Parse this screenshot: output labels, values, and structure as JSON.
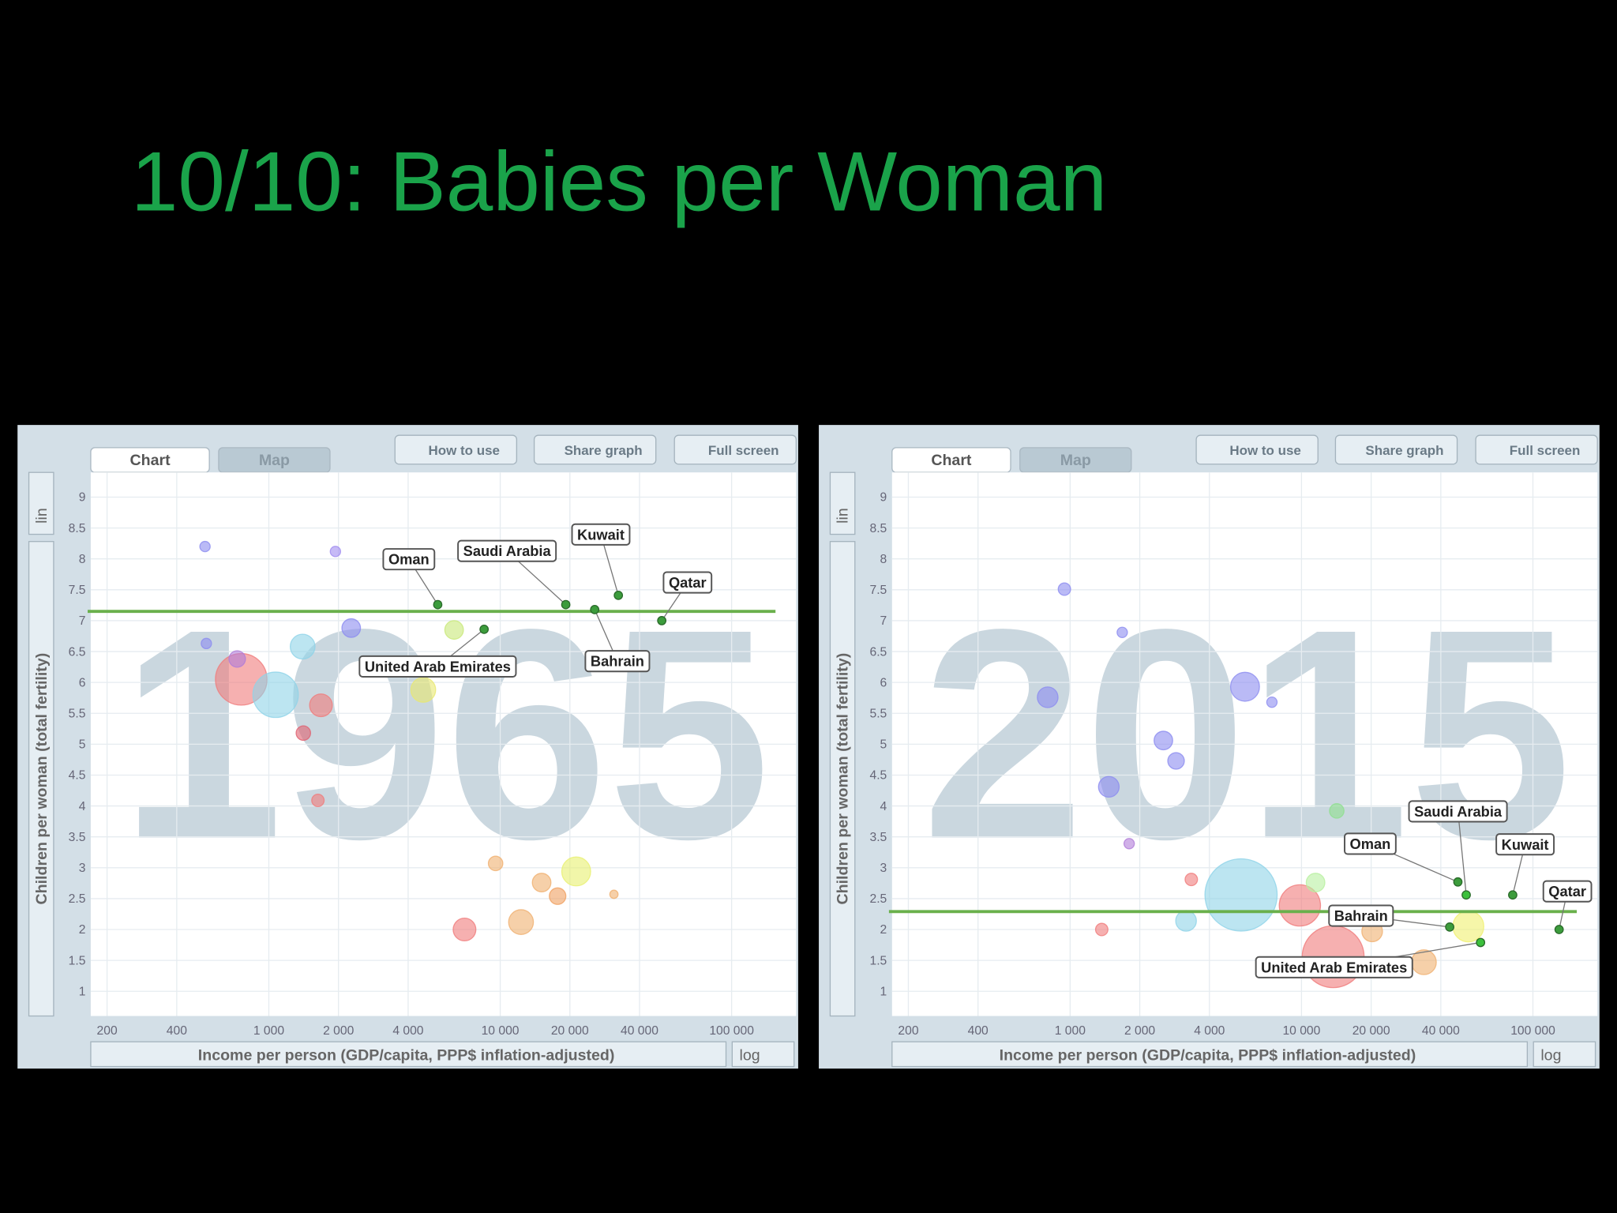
{
  "title": "10/10: Babies per Woman",
  "chart_data": [
    {
      "type": "scatter",
      "year": "1965",
      "tabs": [
        "Chart",
        "Map"
      ],
      "buttons": [
        "How to use",
        "Share graph",
        "Full screen"
      ],
      "x_label": "Income per person (GDP/capita, PPP$ inflation-adjusted)",
      "y_label": "Children per woman (total fertility)",
      "x_scale_control": "log",
      "y_scale_control": "lin",
      "x_scale": "log",
      "grid": true,
      "xlim": [
        170,
        190000
      ],
      "ylim": [
        0.6,
        9.4
      ],
      "xticks": [
        200,
        400,
        {
          "value": 1000,
          "label": "1 000"
        },
        {
          "value": 2000,
          "label": "2 000"
        },
        {
          "value": 4000,
          "label": "4 000"
        },
        {
          "value": 10000,
          "label": "10 000"
        },
        {
          "value": 20000,
          "label": "20 000"
        },
        {
          "value": 40000,
          "label": "40 000"
        },
        {
          "value": 100000,
          "label": "100 000"
        }
      ],
      "yticks": [
        1,
        1.5,
        2,
        2.5,
        3,
        3.5,
        4,
        4.5,
        5,
        5.5,
        6,
        6.5,
        7,
        7.5,
        8,
        8.5,
        9
      ],
      "reference_line": 7.15,
      "reference_color": "#6ab04c",
      "bubbles": {
        "x": [
          760,
          1070,
          1400,
          1680,
          530,
          1940,
          4650,
          7010,
          12300,
          21300,
          15100,
          17700,
          730,
          1410,
          2270,
          6320,
          9550,
          31000,
          1630,
          537
        ],
        "values": [
          6.05,
          5.8,
          6.58,
          5.63,
          8.2,
          8.12,
          5.88,
          2.0,
          2.12,
          2.94,
          2.76,
          2.54,
          6.38,
          5.18,
          6.88,
          6.85,
          3.07,
          2.57,
          4.09,
          6.63
        ],
        "sizes": [
          25,
          22,
          12,
          11,
          5,
          5,
          12,
          11,
          12,
          14,
          9,
          8,
          8,
          7,
          9,
          9,
          7,
          4,
          6,
          5
        ],
        "colors": [
          "#f07c7c",
          "#8fd3e8",
          "#8fd3e8",
          "#f07c7c",
          "#8c8cf0",
          "#a08cf0",
          "#e8e870",
          "#f07c7c",
          "#f0b070",
          "#e8f070",
          "#f0b070",
          "#f0a060",
          "#b07cd8",
          "#e06070",
          "#8c8cf0",
          "#c8e878",
          "#f0b070",
          "#f0b070",
          "#f07c7c",
          "#8c8cf0"
        ]
      },
      "highlighted": [
        {
          "name": "Oman",
          "x": 5370,
          "y": 7.26,
          "color": "#3c9c3c"
        },
        {
          "name": "Saudi Arabia",
          "x": 19200,
          "y": 7.26,
          "color": "#3c9c3c"
        },
        {
          "name": "Kuwait",
          "x": 32400,
          "y": 7.41,
          "color": "#3c9c3c"
        },
        {
          "name": "Qatar",
          "x": 49900,
          "y": 7.0,
          "color": "#3c9c3c"
        },
        {
          "name": "Bahrain",
          "x": 25600,
          "y": 7.18,
          "color": "#3c9c3c"
        },
        {
          "name": "United Arab Emirates",
          "x": 8520,
          "y": 6.86,
          "color": "#3c9c3c"
        }
      ]
    },
    {
      "type": "scatter",
      "year": "2015",
      "tabs": [
        "Chart",
        "Map"
      ],
      "buttons": [
        "How to use",
        "Share graph",
        "Full screen"
      ],
      "x_label": "Income per person (GDP/capita, PPP$ inflation-adjusted)",
      "y_label": "Children per woman (total fertility)",
      "x_scale_control": "log",
      "y_scale_control": "lin",
      "x_scale": "log",
      "grid": true,
      "xlim": [
        170,
        190000
      ],
      "ylim": [
        0.6,
        9.4
      ],
      "xticks": [
        200,
        400,
        {
          "value": 1000,
          "label": "1 000"
        },
        {
          "value": 2000,
          "label": "2 000"
        },
        {
          "value": 4000,
          "label": "4 000"
        },
        {
          "value": 10000,
          "label": "10 000"
        },
        {
          "value": 20000,
          "label": "20 000"
        },
        {
          "value": 40000,
          "label": "40 000"
        },
        {
          "value": 100000,
          "label": "100 000"
        }
      ],
      "yticks": [
        1,
        1.5,
        2,
        2.5,
        3,
        3.5,
        4,
        4.5,
        5,
        5.5,
        6,
        6.5,
        7,
        7.5,
        8,
        8.5,
        9
      ],
      "reference_line": 2.29,
      "reference_color": "#6ab04c",
      "bubbles": {
        "x": [
          5480,
          13700,
          5700,
          800,
          945,
          52600,
          33800,
          3170,
          9840,
          2530,
          1470,
          1680,
          7450,
          14200,
          11500,
          20200,
          1370,
          3340,
          2870,
          1800
        ],
        "values": [
          2.56,
          1.56,
          5.93,
          5.76,
          7.51,
          2.05,
          1.47,
          2.14,
          2.39,
          5.06,
          4.31,
          6.81,
          5.68,
          3.92,
          2.76,
          1.97,
          2.0,
          2.81,
          4.73,
          3.39
        ],
        "sizes": [
          35,
          30,
          14,
          10,
          6,
          15,
          12,
          10,
          20,
          9,
          10,
          5,
          5,
          7,
          9,
          10,
          6,
          6,
          8,
          5
        ],
        "colors": [
          "#8fd3e8",
          "#f07c7c",
          "#8c8cf0",
          "#8c8cf0",
          "#8c8cf0",
          "#f0f070",
          "#f0b070",
          "#8fd3e8",
          "#f07c7c",
          "#8c8cf0",
          "#8c8cf0",
          "#8c8cf0",
          "#8c8cf0",
          "#8ee08e",
          "#b8f0a0",
          "#f0b070",
          "#f07c7c",
          "#f07c7c",
          "#8c8cf0",
          "#b07cd8"
        ]
      },
      "highlighted": [
        {
          "name": "Oman",
          "x": 47400,
          "y": 2.77,
          "color": "#3c9c3c"
        },
        {
          "name": "Saudi Arabia",
          "x": 51500,
          "y": 2.56,
          "color": "#3cc03c"
        },
        {
          "name": "Kuwait",
          "x": 81800,
          "y": 2.56,
          "color": "#3c9c3c"
        },
        {
          "name": "Qatar",
          "x": 129800,
          "y": 2.0,
          "color": "#3c9c3c"
        },
        {
          "name": "Bahrain",
          "x": 43700,
          "y": 2.04,
          "color": "#3c9c3c"
        },
        {
          "name": "United Arab Emirates",
          "x": 59400,
          "y": 1.79,
          "color": "#3cc03c"
        }
      ]
    }
  ]
}
